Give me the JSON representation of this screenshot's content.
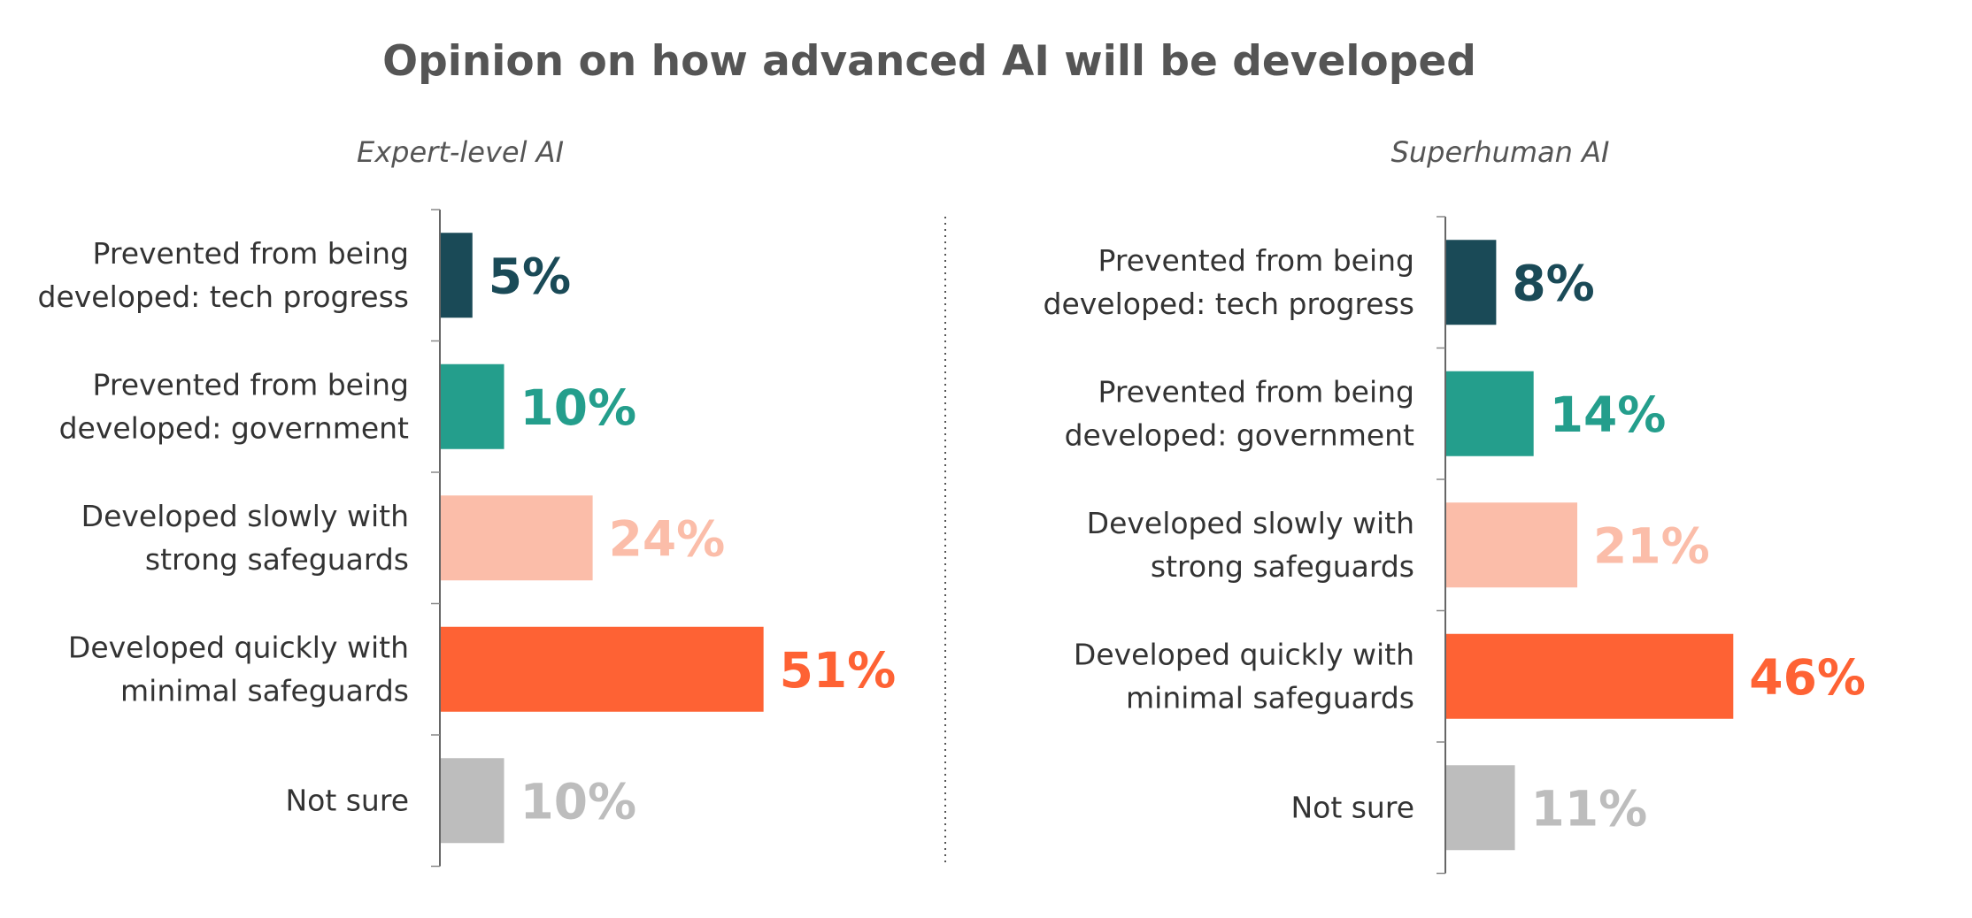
{
  "chart_data": {
    "type": "bar",
    "orientation": "horizontal",
    "title": "Opinion on how advanced AI will be developed",
    "categories": [
      [
        "Prevented from being",
        "developed: tech progress"
      ],
      [
        "Prevented from being",
        "developed: government"
      ],
      [
        "Developed slowly with",
        "strong safeguards"
      ],
      [
        "Developed quickly with",
        "minimal safeguards"
      ],
      [
        "Not sure"
      ]
    ],
    "colors": [
      "#1a4a57",
      "#249e8c",
      "#fbbda9",
      "#fe6234",
      "#bdbdbd"
    ],
    "panels": [
      {
        "subtitle": "Expert-level AI",
        "values": [
          5,
          10,
          24,
          51,
          10
        ],
        "labels": [
          "5%",
          "10%",
          "24%",
          "51%",
          "10%"
        ]
      },
      {
        "subtitle": "Superhuman AI",
        "values": [
          8,
          14,
          21,
          46,
          11
        ],
        "labels": [
          "8%",
          "14%",
          "21%",
          "46%",
          "11%"
        ]
      }
    ]
  }
}
